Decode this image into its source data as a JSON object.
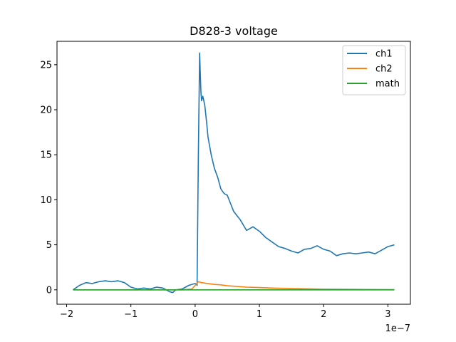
{
  "chart_data": {
    "type": "line",
    "title": "D828-3 voltage",
    "xlabel": "",
    "ylabel": "",
    "x_offset_label": "1e−7",
    "xlim": [
      -2.15,
      3.35
    ],
    "ylim": [
      -1.6,
      27.6
    ],
    "x_ticks": [
      -2,
      -1,
      0,
      1,
      2,
      3
    ],
    "x_tick_labels": [
      "−2",
      "−1",
      "0",
      "1",
      "2",
      "3"
    ],
    "y_ticks": [
      0,
      5,
      10,
      15,
      20,
      25
    ],
    "y_tick_labels": [
      "0",
      "5",
      "10",
      "15",
      "20",
      "25"
    ],
    "grid": false,
    "legend_position": "top-right",
    "series": [
      {
        "name": "ch1",
        "color": "#1f77b4",
        "x": [
          -1.9,
          -1.8,
          -1.7,
          -1.6,
          -1.5,
          -1.4,
          -1.3,
          -1.2,
          -1.1,
          -1.0,
          -0.9,
          -0.8,
          -0.7,
          -0.6,
          -0.5,
          -0.4,
          -0.35,
          -0.3,
          -0.2,
          -0.1,
          0.0,
          0.02,
          0.03,
          0.05,
          0.07,
          0.08,
          0.09,
          0.1,
          0.12,
          0.15,
          0.18,
          0.2,
          0.22,
          0.25,
          0.3,
          0.35,
          0.4,
          0.45,
          0.5,
          0.55,
          0.6,
          0.7,
          0.8,
          0.9,
          1.0,
          1.1,
          1.2,
          1.3,
          1.4,
          1.5,
          1.6,
          1.7,
          1.8,
          1.9,
          2.0,
          2.1,
          2.2,
          2.3,
          2.4,
          2.5,
          2.6,
          2.7,
          2.8,
          2.9,
          3.0,
          3.1
        ],
        "y": [
          0.0,
          0.5,
          0.8,
          0.7,
          0.9,
          1.0,
          0.9,
          1.0,
          0.8,
          0.3,
          0.1,
          0.2,
          0.1,
          0.3,
          0.2,
          -0.2,
          -0.3,
          0.0,
          0.1,
          0.5,
          0.7,
          0.6,
          0.5,
          15.0,
          26.3,
          24.0,
          22.0,
          21.0,
          21.5,
          20.5,
          18.5,
          17.0,
          16.2,
          15.0,
          13.5,
          12.5,
          11.2,
          10.7,
          10.5,
          9.6,
          8.7,
          7.8,
          6.6,
          7.0,
          6.5,
          5.8,
          5.3,
          4.8,
          4.6,
          4.3,
          4.1,
          4.5,
          4.6,
          4.9,
          4.5,
          4.3,
          3.8,
          4.0,
          4.1,
          4.0,
          4.1,
          4.2,
          4.0,
          4.4,
          4.8,
          5.0
        ]
      },
      {
        "name": "ch2",
        "color": "#ff7f0e",
        "x": [
          -1.9,
          -1.0,
          -0.2,
          -0.05,
          0.0,
          0.05,
          0.1,
          0.2,
          0.3,
          0.4,
          0.5,
          0.6,
          0.8,
          1.0,
          1.2,
          1.5,
          2.0,
          2.5,
          3.0,
          3.1
        ],
        "y": [
          0.0,
          0.0,
          0.0,
          0.1,
          0.5,
          0.9,
          0.8,
          0.7,
          0.6,
          0.55,
          0.45,
          0.4,
          0.3,
          0.25,
          0.2,
          0.15,
          0.08,
          0.05,
          0.03,
          0.03
        ]
      },
      {
        "name": "math",
        "color": "#2ca02c",
        "x": [
          -1.9,
          3.1
        ],
        "y": [
          0.0,
          0.0
        ]
      }
    ]
  }
}
